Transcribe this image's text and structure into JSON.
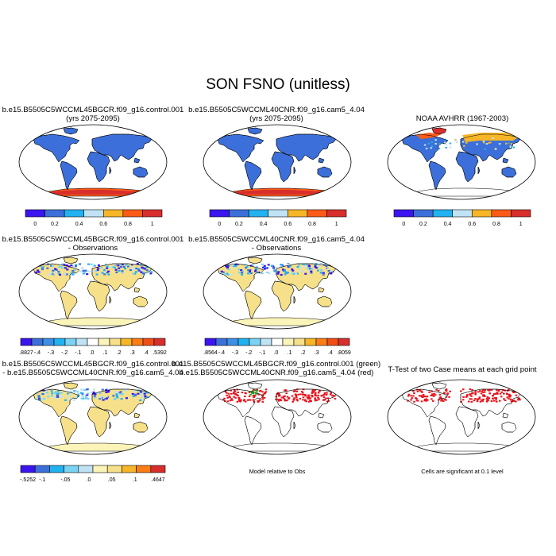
{
  "title": "SON FSNO (unitless)",
  "panels": [
    {
      "title_line1": "b.e15.B5505C5WCCML45BGCR.f09_g16.control.001",
      "title_line2": "(yrs 2075-2095)"
    },
    {
      "title_line1": "b.e15.B5505C5WCCML40CNR.f09_g16.cam5_4.04",
      "title_line2": "(yrs 2075-2095)"
    },
    {
      "title_line1": "NOAA AVHRR (1967-2003)",
      "title_line2": ""
    },
    {
      "title_line1": "b.e15.B5505C5WCCML45BGCR.f09_g16.control.001",
      "title_line2": "- Observations"
    },
    {
      "title_line1": "b.e15.B5505C5WCCML40CNR.f09_g16.cam5_4.04",
      "title_line2": "- Observations"
    },
    {
      "title_line1": "b.e15.B5505C5WCCML45BGCR.f09_g16.control.001",
      "title_line2": "- b.e15.B5505C5WCCML40CNR.f09_g16.cam5_4.04"
    },
    {
      "title_line1": "b.e15.B5505C5WCCML45BGCR.f09_g16.control.001 (green)",
      "title_line2": "b.e15.B5505C5WCCML40CNR.f09_g16.cam5_4.04 (red)"
    },
    {
      "title_line1": "T-Test of two Case means at each grid point",
      "title_line2": ""
    }
  ],
  "captions": {
    "model_vs_obs": "Model relative to Obs",
    "ttest": "Cells are significant at 0.1 level"
  },
  "chart_data": [
    {
      "type": "colorbar",
      "name": "fsno-absolute",
      "colors": [
        "#3b14f0",
        "#3c6fd9",
        "#22b2ef",
        "#bfe3f5",
        "#f6b628",
        "#fb5b16",
        "#d82e2c"
      ],
      "tick_labels": [
        "0",
        "0.2",
        "0.4",
        "0.6",
        "0.8",
        "1"
      ]
    },
    {
      "type": "colorbar",
      "name": "fsno-bias-case1",
      "colors": [
        "#3b14f0",
        "#3c6fd9",
        "#3d8fe6",
        "#22b2ef",
        "#7bd3f3",
        "#bfe3f5",
        "#ffffff",
        "#fbf4b9",
        "#f6e08a",
        "#f6b628",
        "#fb7d16",
        "#f04e16",
        "#d82e2c"
      ],
      "tick_labels": [
        ".8827",
        "-.4",
        "-.3",
        "-.2",
        "-.1",
        ".0",
        ".1",
        ".2",
        ".3",
        ".4",
        ".5392"
      ]
    },
    {
      "type": "colorbar",
      "name": "fsno-bias-case2",
      "colors": [
        "#3b14f0",
        "#3c6fd9",
        "#3d8fe6",
        "#22b2ef",
        "#7bd3f3",
        "#bfe3f5",
        "#ffffff",
        "#fbf4b9",
        "#f6e08a",
        "#f6b628",
        "#fb7d16",
        "#f04e16",
        "#d82e2c"
      ],
      "tick_labels": [
        ".8564",
        "-.4",
        "-.3",
        "-.2",
        "-.1",
        ".0",
        ".1",
        ".2",
        ".3",
        ".4",
        ".8059"
      ]
    },
    {
      "type": "colorbar",
      "name": "fsno-case-difference",
      "colors": [
        "#3b14f0",
        "#3c6fd9",
        "#22b2ef",
        "#7bd3f3",
        "#bfe3f5",
        "#fbf4b9",
        "#f6e08a",
        "#f6b628",
        "#fb7d16",
        "#d82e2c"
      ],
      "tick_labels": [
        "-.5252",
        "-.1",
        "-.05",
        ".0",
        ".05",
        ".1",
        ".4647"
      ]
    }
  ]
}
